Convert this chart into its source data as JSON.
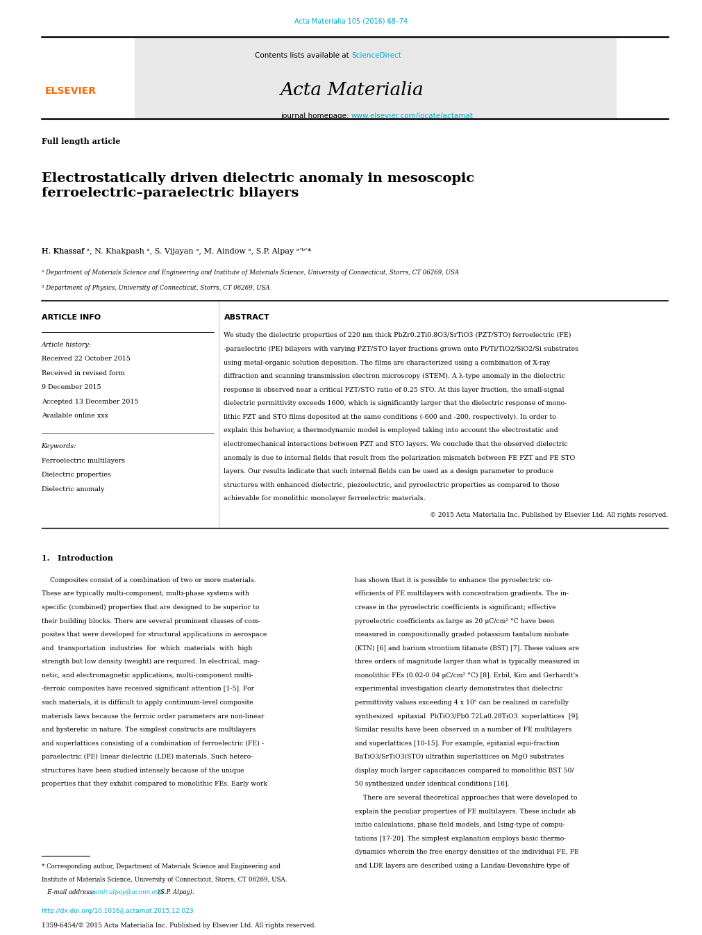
{
  "background_color": "#ffffff",
  "page_width": 9.92,
  "page_height": 13.23,
  "top_link": "Acta Materialia 105 (2016) 68–74",
  "top_link_color": "#00aacc",
  "header_bg": "#e8e8e8",
  "header_contents_text": "Contents lists available at ",
  "header_sciencedirect": "ScienceDirect",
  "header_sciencedirect_color": "#00aacc",
  "journal_name": "Acta Materialia",
  "journal_homepage_text": "journal homepage: ",
  "journal_homepage_url": "www.elsevier.com/locate/actamat",
  "journal_homepage_url_color": "#00aacc",
  "article_type": "Full length article",
  "title": "Electrostatically driven dielectric anomaly in mesoscopic\nferroelectric–paraelectric bilayers",
  "authors": "H. Khassaf ᵃ, N. Khakpash ᵃ, S. Vijayan ᵃ, M. Aindow ᵃ, S.P. Alpay ᵃ’ᵇ’*",
  "affil_a": "ᵃ Department of Materials Science and Engineering and Institute of Materials Science, University of Connecticut, Storrs, CT 06269, USA",
  "affil_b": "ᵇ Department of Physics, University of Connecticut, Storrs, CT 06269, USA",
  "article_info_header": "ARTICLE INFO",
  "abstract_header": "ABSTRACT",
  "article_history_label": "Article history:",
  "received_1": "Received 22 October 2015",
  "received_2": "Received in revised form",
  "received_2b": "9 December 2015",
  "accepted": "Accepted 13 December 2015",
  "available": "Available online xxx",
  "keywords_label": "Keywords:",
  "keyword_1": "Ferroelectric multilayers",
  "keyword_2": "Dielectric properties",
  "keyword_3": "Dielectric anomaly",
  "abstract_text": "We study the dielectric properties of 220 nm thick PbZr0.2Ti0.8O3/SrTiO3 (PZT/STO) ferroelectric (FE)\n-paraelectric (PE) bilayers with varying PZT/STO layer fractions grown onto Pt/Ti/TiO2/SiO2/Si substrates\nusing metal-organic solution deposition. The films are characterized using a combination of X-ray\ndiffraction and scanning transmission electron microscopy (STEM). A λ-type anomaly in the dielectric\nresponse is observed near a critical PZT/STO ratio of 0.25 STO. At this layer fraction, the small-signal\ndielectric permittivity exceeds 1600, which is significantly larger that the dielectric response of mono-\nlithic PZT and STO films deposited at the same conditions (-600 and -200, respectively). In order to\nexplain this behavior, a thermodynamic model is employed taking into account the electrostatic and\nelectromechanical interactions between PZT and STO layers. We conclude that the observed dielectric\nanomaly is due to internal fields that result from the polarization mismatch between FE PZT and PE STO\nlayers. Our results indicate that such internal fields can be used as a design parameter to produce\nstructures with enhanced dielectric, piezoelectric, and pyroelectric properties as compared to those\nachievable for monolithic monolayer ferroelectric materials.",
  "copyright": "© 2015 Acta Materialia Inc. Published by Elsevier Ltd. All rights reserved.",
  "intro_heading": "1.   Introduction",
  "intro_col1_lines": [
    "    Composites consist of a combination of two or more materials.",
    "These are typically multi-component, multi-phase systems with",
    "specific (combined) properties that are designed to be superior to",
    "their building blocks. There are several prominent classes of com-",
    "posites that were developed for structural applications in aerospace",
    "and  transportation  industries  for  which  materials  with  high",
    "strength but low density (weight) are required. In electrical, mag-",
    "netic, and electromagnetic applications, multi-component multi-",
    "-ferroic composites have received significant attention [1-5]. For",
    "such materials, it is difficult to apply continuum-level composite",
    "materials laws because the ferroic order parameters are non-linear",
    "and hysteretic in nature. The simplest constructs are multilayers",
    "and superlattices consisting of a combination of ferroelectric (FE) -",
    "paraelectric (PE) linear dielectric (LDE) materials. Such hetero-",
    "structures have been studied intensely because of the unique",
    "properties that they exhibit compared to monolithic FEs. Early work"
  ],
  "intro_col2_lines": [
    "has shown that it is possible to enhance the pyroelectric co-",
    "efficients of FE multilayers with concentration gradients. The in-",
    "crease in the pyroelectric coefficients is significant; effective",
    "pyroelectric coefficients as large as 20 μC/cm² °C have been",
    "measured in compositionally graded potassium tantalum niobate",
    "(KTN) [6] and barium strontium titanate (BST) [7]. These values are",
    "three orders of magnitude larger than what is typically measured in",
    "monolithic FEs (0.02-0.04 μC/cm² °C) [8]. Erbil, Kim and Gerhardt's",
    "experimental investigation clearly demonstrates that dielectric",
    "permittivity values exceeding 4 x 10⁵ can be realized in carefully",
    "synthesized  epitaxial  PbTiO3/Pb0.72La0.28TiO3  superlattices  [9].",
    "Similar results have been observed in a number of FE multilayers",
    "and superlattices [10-15]. For example, epitaxial equi-fraction",
    "BaTiO3/SrTiO3(STO) ultrathin superlattices on MgO substrates",
    "display much larger capacitances compared to monolithic BST 50/",
    "50 synthesized under identical conditions [16].",
    "    There are several theoretical approaches that were developed to",
    "explain the peculiar properties of FE multilayers. These include ab",
    "initio calculations, phase field models, and Ising-type of compu-",
    "tations [17-20]. The simplest explanation employs basic thermo-",
    "dynamics wherein the free energy densities of the individual FE, PE",
    "and LDE layers are described using a Landau-Devonshire type of"
  ],
  "footnote_star": "* Corresponding author, Department of Materials Science and Engineering and",
  "footnote_star2": "Institute of Materials Science, University of Connecticut, Storrs, CT 06269, USA.",
  "footnote_email_label": "   E-mail address: ",
  "footnote_email": "pamir.alpay@uconn.edu",
  "footnote_email_color": "#00aacc",
  "footnote_email_suffix": " (S.P. Alpay).",
  "doi_url": "http://dx.doi.org/10.1016/j.actamat.2015.12.023",
  "doi_url_color": "#00aacc",
  "issn_line": "1359-6454/© 2015 Acta Materialia Inc. Published by Elsevier Ltd. All rights reserved.",
  "elsevier_text": "ELSEVIER",
  "elsevier_color": "#ff6600",
  "separator_color": "#000000"
}
